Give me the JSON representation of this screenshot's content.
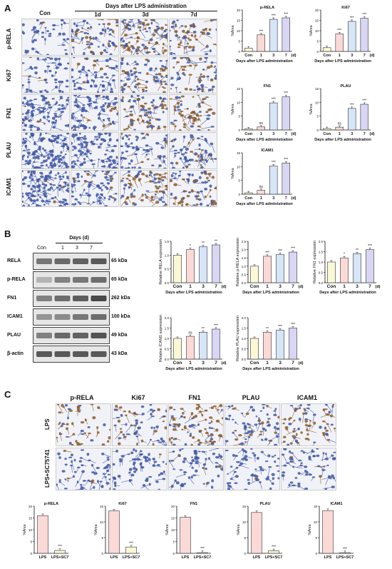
{
  "panelA": {
    "label": "A",
    "col_con": "Con",
    "group_header": "Days after LPS administration",
    "cols": [
      "1d",
      "3d",
      "7d"
    ],
    "rows": [
      "p-RELA",
      "Ki67",
      "FN1",
      "PLAU",
      "ICAM1"
    ],
    "charts": [
      {
        "title": "p-RELA",
        "ylabel": "%Area",
        "categories": [
          "Con",
          "1",
          "3",
          "7"
        ],
        "values": [
          1.6,
          8,
          15.5,
          16.2
        ],
        "sig": [
          "",
          "***",
          "***",
          "***"
        ],
        "ymax": 20,
        "yticks": [
          0,
          5,
          10,
          15,
          20
        ],
        "xlabel": "Days after LPS administration",
        "unit": "(d)"
      },
      {
        "title": "Ki67",
        "ylabel": "%Area",
        "categories": [
          "Con",
          "1",
          "3",
          "7"
        ],
        "values": [
          1.8,
          8.5,
          14.5,
          16
        ],
        "sig": [
          "",
          "***",
          "***",
          "***"
        ],
        "ymax": 20,
        "yticks": [
          0,
          5,
          10,
          15,
          20
        ],
        "xlabel": "Days after LPS administration",
        "unit": "(d)"
      },
      {
        "title": "FN1",
        "ylabel": "%Area",
        "categories": [
          "Con",
          "1",
          "3",
          "7"
        ],
        "values": [
          0.4,
          1.1,
          9.8,
          12
        ],
        "sig": [
          "",
          "ns",
          "***",
          "***"
        ],
        "ymax": 15,
        "yticks": [
          0,
          5,
          10,
          15
        ],
        "xlabel": "Days after LPS administration",
        "unit": "(d)"
      },
      {
        "title": "PLAU",
        "ylabel": "%Area",
        "categories": [
          "Con",
          "1",
          "3",
          "7"
        ],
        "values": [
          0.5,
          1,
          7.8,
          9.3
        ],
        "sig": [
          "",
          "ns",
          "***",
          "***"
        ],
        "ymax": 15,
        "yticks": [
          0,
          5,
          10,
          15
        ],
        "xlabel": "Days after LPS administration",
        "unit": "(d)"
      },
      {
        "title": "ICAM1",
        "ylabel": "%Area",
        "categories": [
          "Con",
          "1",
          "3",
          "7"
        ],
        "values": [
          0.5,
          1.4,
          10.2,
          11.3
        ],
        "sig": [
          "",
          "ns",
          "***",
          "***"
        ],
        "ymax": 15,
        "yticks": [
          0,
          5,
          10,
          15
        ],
        "xlabel": "Days after LPS administration",
        "unit": "(d)"
      }
    ]
  },
  "panelB": {
    "label": "B",
    "days_header": "Days (d)",
    "lanes": [
      "Con",
      "1",
      "3",
      "7"
    ],
    "blots": [
      {
        "name": "RELA",
        "kda": "65 kDa"
      },
      {
        "name": "p-RELA",
        "kda": "65 kDa"
      },
      {
        "name": "FN1",
        "kda": "262 kDa"
      },
      {
        "name": "ICAM1",
        "kda": "100 kDa"
      },
      {
        "name": "PLAU",
        "kda": "49 kDa"
      },
      {
        "name": "β-actin",
        "kda": "43 kDa"
      }
    ],
    "charts": [
      {
        "ylabel": "Relative RELA expression",
        "categories": [
          "Con",
          "1",
          "3",
          "7"
        ],
        "values": [
          1.0,
          1.2,
          1.3,
          1.37
        ],
        "sig": [
          "",
          "*",
          "**",
          "**"
        ],
        "ymax": 1.5,
        "yticks": [
          "0.0",
          "0.5",
          "1.0",
          "1.5"
        ],
        "xlabel": "Days after LPS administration",
        "unit": "(d)"
      },
      {
        "ylabel": "Relative p-RELA expression",
        "categories": [
          "Con",
          "1",
          "3",
          "7"
        ],
        "values": [
          1.0,
          1.6,
          1.7,
          1.85
        ],
        "sig": [
          "",
          "***",
          "***",
          "***"
        ],
        "ymax": 2.5,
        "yticks": [
          "0.0",
          "0.5",
          "1.0",
          "1.5",
          "2.0",
          "2.5"
        ],
        "xlabel": "Days after LPS administration",
        "unit": "(d)"
      },
      {
        "ylabel": "Relative FN1 expression",
        "categories": [
          "Con",
          "1",
          "3",
          "7"
        ],
        "values": [
          1.0,
          1.2,
          1.4,
          1.6
        ],
        "sig": [
          "",
          "*",
          "**",
          "***"
        ],
        "ymax": 2.0,
        "yticks": [
          "0.0",
          "0.5",
          "1.0",
          "1.5",
          "2.0"
        ],
        "xlabel": "Days after LPS administration",
        "unit": "(d)"
      },
      {
        "ylabel": "Relative ICAM1 expression",
        "categories": [
          "Con",
          "1",
          "3",
          "7"
        ],
        "values": [
          1.0,
          1.1,
          1.3,
          1.45
        ],
        "sig": [
          "",
          "ns",
          "**",
          "***"
        ],
        "ymax": 2.0,
        "yticks": [
          "0.0",
          "0.5",
          "1.0",
          "1.5",
          "2.0"
        ],
        "xlabel": "Days after LPS administration",
        "unit": "(d)"
      },
      {
        "ylabel": "Relative PLAU expression",
        "categories": [
          "Con",
          "1",
          "3",
          "7"
        ],
        "values": [
          1.0,
          1.3,
          1.4,
          1.5
        ],
        "sig": [
          "",
          "**",
          "***",
          "***"
        ],
        "ymax": 2.0,
        "yticks": [
          "0.0",
          "0.5",
          "1.0",
          "1.5",
          "2.0"
        ],
        "xlabel": "Days after LPS administration",
        "unit": "(d)"
      }
    ]
  },
  "panelC": {
    "label": "C",
    "cols": [
      "p-RELA",
      "Ki67",
      "FN1",
      "PLAU",
      "ICAM1"
    ],
    "rows": [
      "LPS",
      "LPS+SC75741"
    ],
    "charts": [
      {
        "title": "p-RELA",
        "ylabel": "%Area",
        "categories": [
          "LPS",
          "LPS+SC7"
        ],
        "values": [
          16,
          1.2
        ],
        "sig": [
          "",
          "***"
        ],
        "ymax": 20,
        "yticks": [
          0,
          5,
          10,
          15,
          20
        ]
      },
      {
        "title": "Ki67",
        "ylabel": "%Area",
        "categories": [
          "LPS",
          "LPS+SC7"
        ],
        "values": [
          13.5,
          2
        ],
        "sig": [
          "",
          "***"
        ],
        "ymax": 15,
        "yticks": [
          0,
          5,
          10,
          15
        ]
      },
      {
        "title": "FN1",
        "ylabel": "%Area",
        "categories": [
          "LPS",
          "LPS+SC7"
        ],
        "values": [
          15.3,
          0.3
        ],
        "sig": [
          "",
          "***"
        ],
        "ymax": 20,
        "yticks": [
          0,
          5,
          10,
          15,
          20
        ]
      },
      {
        "title": "PLAU",
        "ylabel": "%Area",
        "categories": [
          "LPS",
          "LPS+SC7"
        ],
        "values": [
          13,
          0.8
        ],
        "sig": [
          "",
          "***"
        ],
        "ymax": 15,
        "yticks": [
          0,
          5,
          10,
          15
        ]
      },
      {
        "title": "ICAM1",
        "ylabel": "%Area",
        "categories": [
          "LPS",
          "LPS+SC7"
        ],
        "values": [
          13.6,
          0.2
        ],
        "sig": [
          "",
          "***"
        ],
        "ymax": 15,
        "yticks": [
          0,
          5,
          10,
          15
        ]
      }
    ]
  },
  "colors": {
    "con": "#fbf8d6",
    "d1": "#fbd9d6",
    "d3": "#d6e5f8",
    "d7": "#d9d6f4",
    "lps": "#fbd9d6",
    "sc": "#fbf8d6",
    "stain_blue": "#3e57a6",
    "stain_brown": "#8a5a2b",
    "bg_tile": "#eef0f6"
  }
}
